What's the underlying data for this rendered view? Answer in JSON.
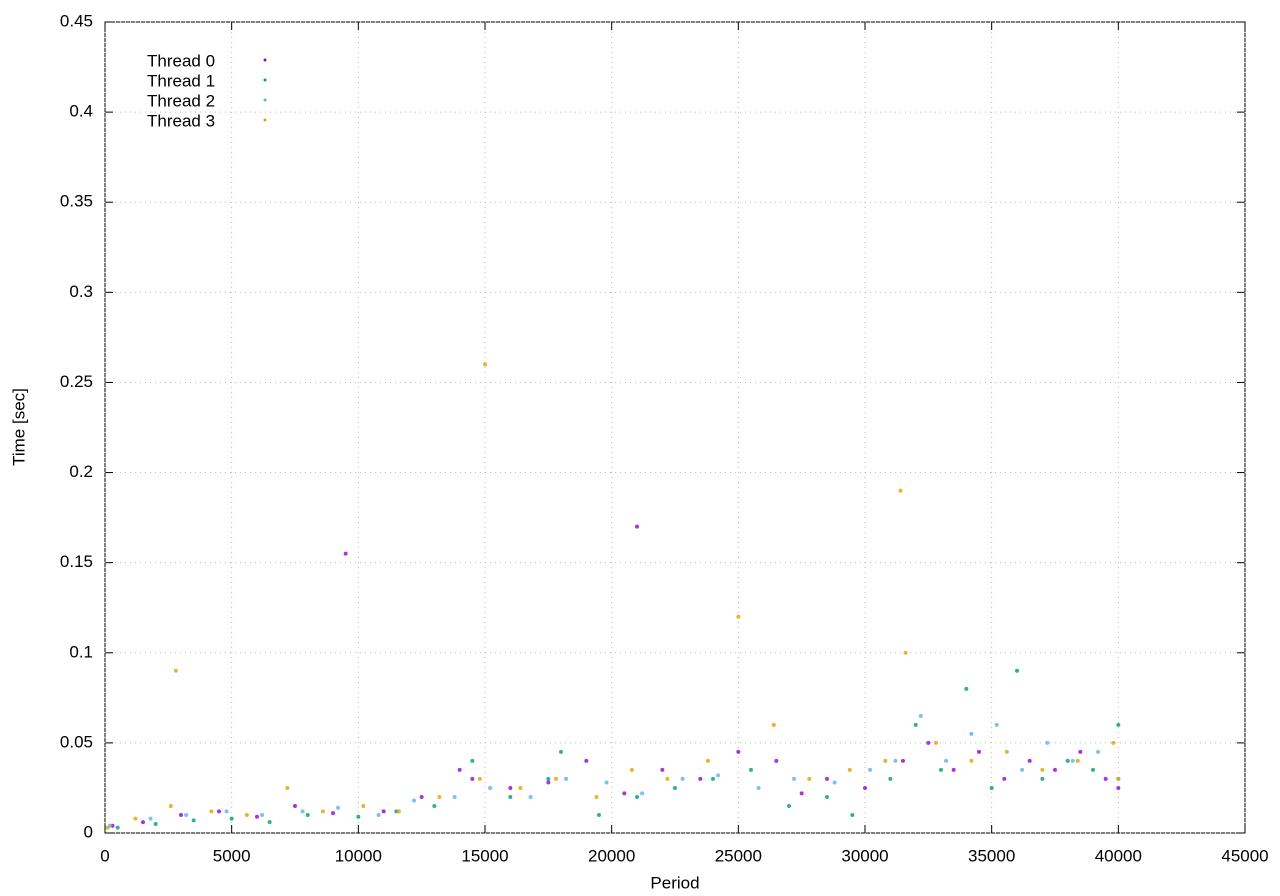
{
  "chart_data": {
    "type": "scatter",
    "x_label": "Period",
    "y_label": "Time [sec]",
    "xlim": [
      0,
      45000
    ],
    "ylim": [
      0,
      0.45
    ],
    "xticks": [
      0,
      5000,
      10000,
      15000,
      20000,
      25000,
      30000,
      35000,
      40000,
      45000
    ],
    "yticks": [
      0,
      0.05,
      0.1,
      0.15,
      0.2,
      0.25,
      0.3,
      0.35,
      0.4,
      0.45
    ],
    "grid": true,
    "legend": "top-left",
    "series": [
      {
        "name": "Thread 0",
        "color": "#9400d3",
        "x": [
          300,
          1500,
          3000,
          4500,
          6000,
          7500,
          9000,
          9500,
          11000,
          12500,
          14000,
          14500,
          16000,
          17500,
          19000,
          20500,
          21000,
          22000,
          23500,
          25000,
          26500,
          27500,
          28500,
          30000,
          31500,
          32500,
          33500,
          34500,
          35500,
          36500,
          37500,
          38500,
          39500,
          40000
        ],
        "values": [
          0.004,
          0.006,
          0.01,
          0.012,
          0.009,
          0.015,
          0.011,
          0.155,
          0.012,
          0.02,
          0.035,
          0.03,
          0.025,
          0.028,
          0.04,
          0.022,
          0.17,
          0.035,
          0.03,
          0.045,
          0.04,
          0.022,
          0.03,
          0.025,
          0.04,
          0.05,
          0.035,
          0.045,
          0.03,
          0.04,
          0.035,
          0.045,
          0.03,
          0.025
        ]
      },
      {
        "name": "Thread 1",
        "color": "#009e73",
        "x": [
          500,
          2000,
          3500,
          5000,
          6500,
          8000,
          10000,
          11500,
          13000,
          14500,
          16000,
          17500,
          18000,
          19500,
          21000,
          22500,
          24000,
          25500,
          27000,
          28500,
          29500,
          31000,
          32000,
          33000,
          34000,
          35000,
          36000,
          37000,
          38000,
          39000,
          40000
        ],
        "values": [
          0.003,
          0.005,
          0.007,
          0.008,
          0.006,
          0.01,
          0.009,
          0.012,
          0.015,
          0.04,
          0.02,
          0.03,
          0.045,
          0.01,
          0.02,
          0.025,
          0.03,
          0.035,
          0.015,
          0.02,
          0.01,
          0.03,
          0.06,
          0.035,
          0.08,
          0.025,
          0.09,
          0.03,
          0.04,
          0.035,
          0.06
        ]
      },
      {
        "name": "Thread 2",
        "color": "#56b4e9",
        "x": [
          200,
          1800,
          3200,
          4800,
          6200,
          7800,
          9200,
          10800,
          12200,
          13800,
          15200,
          16800,
          18200,
          19800,
          21200,
          22800,
          24200,
          25800,
          27200,
          28800,
          30200,
          31200,
          32200,
          33200,
          34200,
          35200,
          36200,
          37200,
          38200,
          39200,
          40000
        ],
        "values": [
          0.004,
          0.008,
          0.01,
          0.012,
          0.01,
          0.012,
          0.014,
          0.01,
          0.018,
          0.02,
          0.025,
          0.02,
          0.03,
          0.028,
          0.022,
          0.03,
          0.032,
          0.025,
          0.03,
          0.028,
          0.035,
          0.04,
          0.065,
          0.04,
          0.055,
          0.06,
          0.035,
          0.05,
          0.04,
          0.045,
          0.03
        ]
      },
      {
        "name": "Thread 3",
        "color": "#e69f00",
        "x": [
          100,
          1200,
          2600,
          2800,
          4200,
          5600,
          7200,
          8600,
          10200,
          11600,
          13200,
          14800,
          15000,
          16400,
          17800,
          19400,
          20800,
          22200,
          23800,
          25000,
          26400,
          27800,
          29400,
          30800,
          31400,
          31600,
          32800,
          34200,
          35600,
          37000,
          38400,
          39800,
          40000
        ],
        "values": [
          0.003,
          0.008,
          0.015,
          0.09,
          0.012,
          0.01,
          0.025,
          0.012,
          0.015,
          0.012,
          0.02,
          0.03,
          0.26,
          0.025,
          0.03,
          0.02,
          0.035,
          0.03,
          0.04,
          0.12,
          0.06,
          0.03,
          0.035,
          0.04,
          0.19,
          0.1,
          0.05,
          0.04,
          0.045,
          0.035,
          0.04,
          0.05,
          0.03
        ]
      }
    ]
  }
}
